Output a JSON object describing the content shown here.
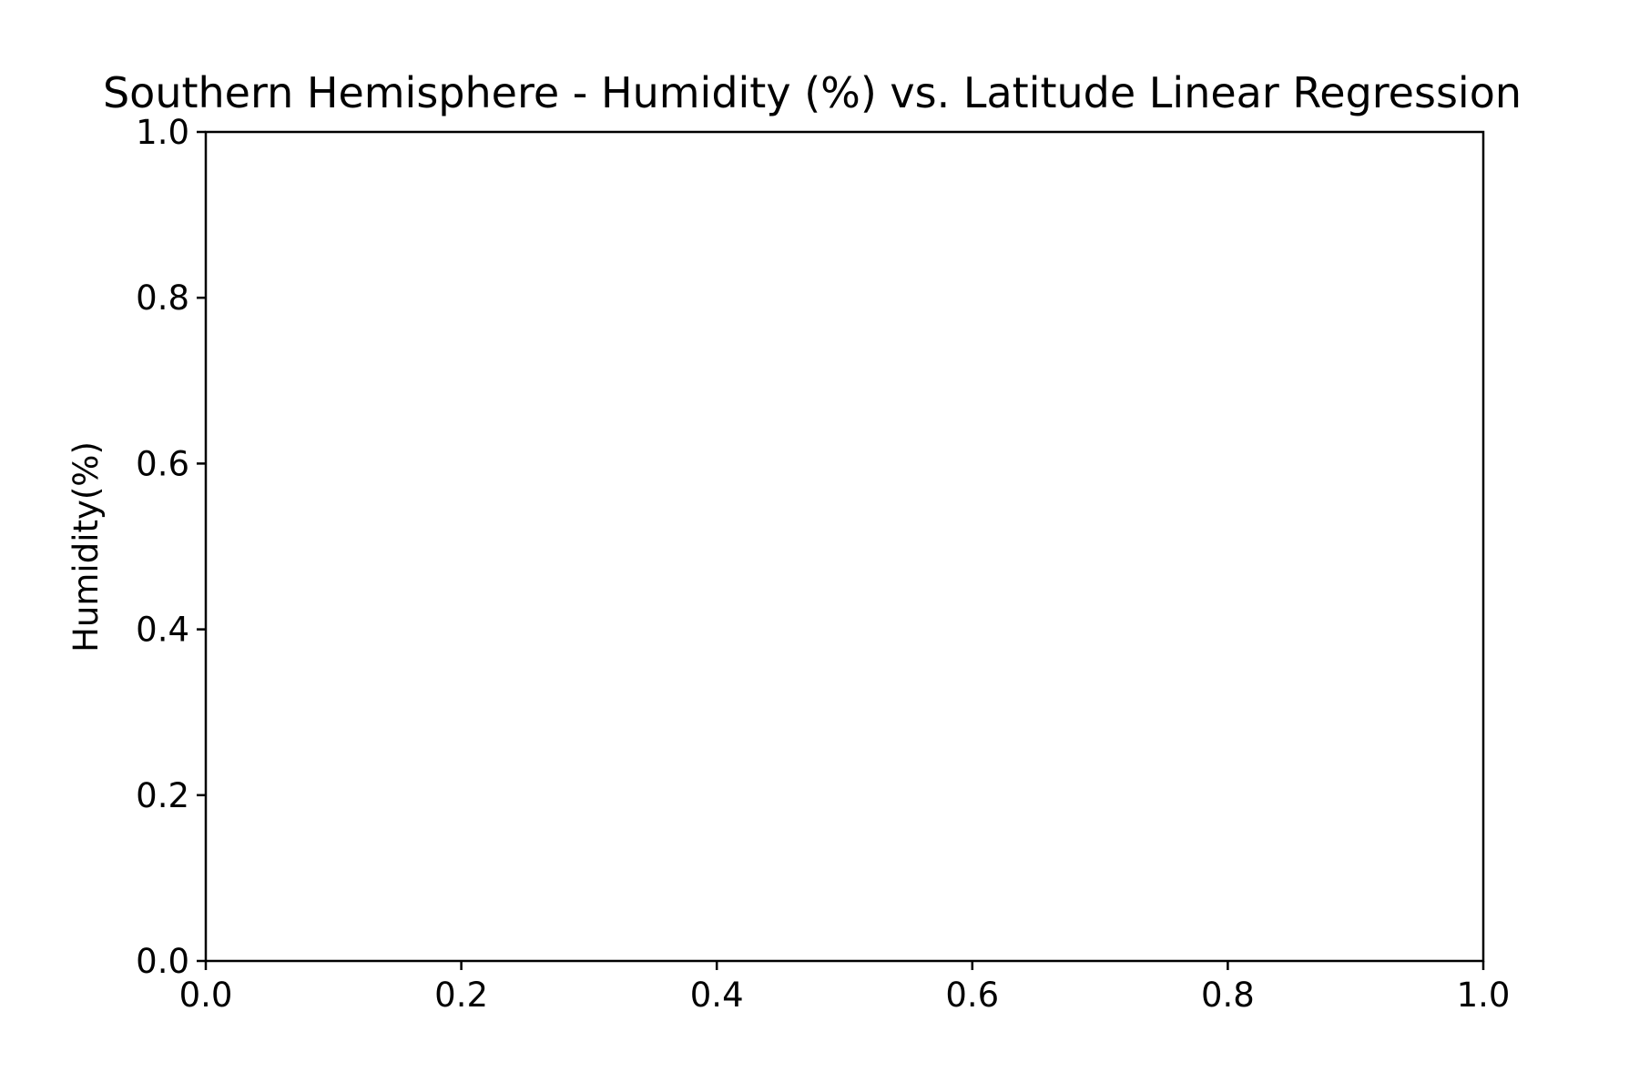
{
  "chart_data": {
    "type": "scatter",
    "title": "Southern Hemisphere - Humidity (%) vs. Latitude Linear Regression",
    "xlabel": "",
    "ylabel": "Humidity(%)",
    "xlim": [
      0.0,
      1.0
    ],
    "ylim": [
      0.0,
      1.0
    ],
    "x_ticks": [
      "0.0",
      "0.2",
      "0.4",
      "0.6",
      "0.8",
      "1.0"
    ],
    "y_ticks": [
      "0.0",
      "0.2",
      "0.4",
      "0.6",
      "0.8",
      "1.0"
    ],
    "grid": false,
    "series": []
  }
}
